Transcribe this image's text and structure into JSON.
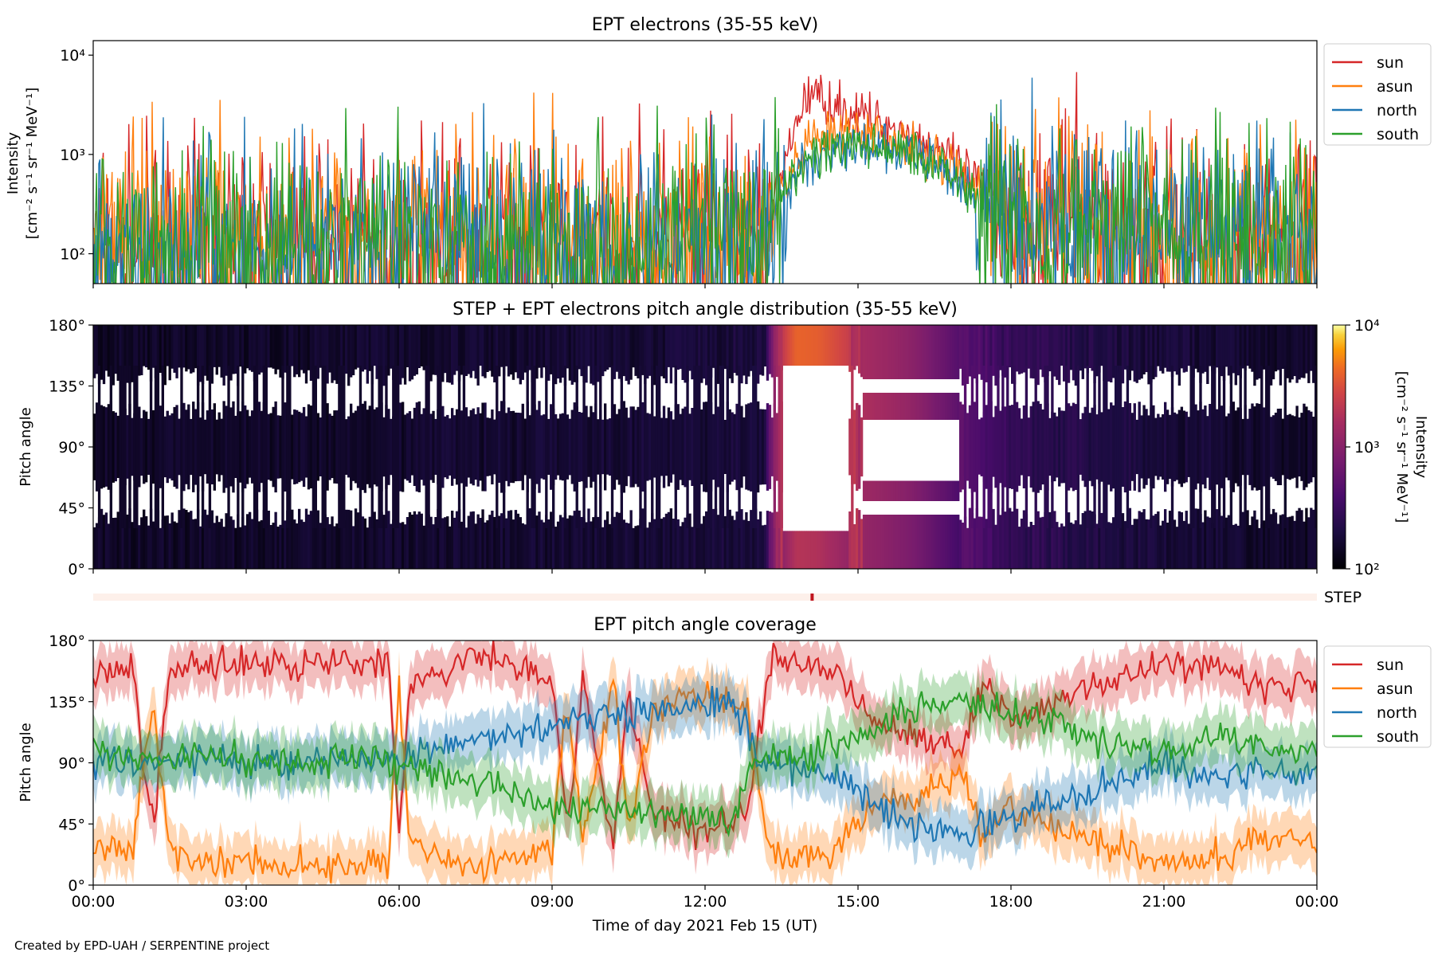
{
  "figure": {
    "credit": "Created by EPD-UAH / SERPENTINE project",
    "xlabel": "Time of day 2021 Feb 15 (UT)",
    "xtick_labels": [
      "00:00",
      "03:00",
      "06:00",
      "09:00",
      "12:00",
      "15:00",
      "18:00",
      "21:00",
      "00:00"
    ],
    "step_label": "STEP"
  },
  "chart_data": [
    {
      "type": "line",
      "title": "EPT electrons (35-55 keV)",
      "ylabel_lines": [
        "Intensity",
        "[cm⁻² s⁻¹ sr⁻¹ MeV⁻¹]"
      ],
      "yscale": "log",
      "ylim": [
        50,
        14000
      ],
      "yticks": [
        100,
        1000,
        10000
      ],
      "ytick_labels": [
        "10²",
        "10³",
        "10⁴"
      ],
      "xlim_hours": [
        0,
        24
      ],
      "legend_position": "outside-right-top",
      "series": [
        {
          "name": "sun",
          "color": "#d62728",
          "hours": [
            0,
            2,
            4,
            6,
            8,
            10,
            12,
            13.2,
            13.6,
            13.9,
            14.1,
            14.5,
            15,
            15.5,
            16,
            16.5,
            17,
            17.5,
            18,
            19,
            20,
            21,
            22,
            23,
            24
          ],
          "values": [
            120,
            120,
            125,
            125,
            130,
            135,
            140,
            150,
            700,
            3000,
            4200,
            3200,
            2500,
            2000,
            1600,
            1200,
            700,
            450,
            300,
            250,
            200,
            180,
            170,
            160,
            150
          ]
        },
        {
          "name": "asun",
          "color": "#ff7f0e",
          "hours": [
            0,
            2,
            4,
            6,
            8,
            10,
            12,
            13.2,
            13.6,
            13.9,
            14.1,
            14.5,
            15,
            15.5,
            16,
            16.5,
            17,
            17.5,
            18,
            19,
            20,
            21,
            22,
            23,
            24
          ],
          "values": [
            140,
            145,
            145,
            150,
            150,
            155,
            160,
            160,
            500,
            900,
            1300,
            1500,
            1600,
            1500,
            1300,
            1000,
            650,
            420,
            300,
            240,
            200,
            180,
            170,
            160,
            150
          ]
        },
        {
          "name": "north",
          "color": "#1f77b4",
          "hours": [
            0,
            2,
            4,
            6,
            8,
            10,
            12,
            13.2,
            13.6,
            13.9,
            14.1,
            14.5,
            15,
            15.5,
            16,
            16.5,
            17,
            17.5,
            18,
            19,
            20,
            21,
            22,
            23,
            24
          ],
          "values": [
            130,
            135,
            135,
            140,
            140,
            140,
            145,
            150,
            400,
            700,
            900,
            1100,
            1150,
            1100,
            1000,
            800,
            500,
            330,
            250,
            220,
            190,
            170,
            160,
            150,
            145
          ]
        },
        {
          "name": "south",
          "color": "#2ca02c",
          "hours": [
            0,
            2,
            4,
            6,
            8,
            10,
            12,
            13.2,
            13.6,
            13.9,
            14.1,
            14.5,
            15,
            15.5,
            16,
            16.5,
            17,
            17.5,
            18,
            19,
            20,
            21,
            22,
            23,
            24
          ],
          "values": [
            135,
            140,
            140,
            145,
            145,
            145,
            150,
            155,
            450,
            750,
            950,
            1150,
            1200,
            1150,
            1050,
            850,
            550,
            350,
            260,
            230,
            200,
            180,
            165,
            155,
            150
          ]
        }
      ]
    },
    {
      "type": "heatmap",
      "title": "STEP + EPT electrons pitch angle distribution (35-55 keV)",
      "ylabel": "Pitch angle",
      "yticks": [
        0,
        45,
        90,
        135,
        180
      ],
      "ytick_labels": [
        "0°",
        "45°",
        "90°",
        "135°",
        "180°"
      ],
      "ylim": [
        0,
        180
      ],
      "xlim_hours": [
        0,
        24
      ],
      "colorbar": {
        "label_lines": [
          "Intensity",
          "[cm⁻² s⁻¹ sr⁻¹ MeV⁻¹]"
        ],
        "scale": "log",
        "range": [
          100,
          10000
        ],
        "tick_labels": [
          "10²",
          "10³",
          "10⁴"
        ],
        "colormap": "inferno"
      },
      "intensity_profile": {
        "hours": [
          0,
          2,
          4,
          6,
          8,
          10,
          12,
          13.2,
          13.8,
          14.2,
          15,
          15.5,
          16,
          16.5,
          17,
          18,
          20,
          22,
          24
        ],
        "values": [
          150,
          150,
          155,
          160,
          165,
          170,
          180,
          200,
          3500,
          3300,
          1800,
          1500,
          1200,
          800,
          500,
          280,
          200,
          170,
          150
        ]
      }
    },
    {
      "type": "bar",
      "title": "",
      "label": "STEP",
      "xlim_hours": [
        0,
        24
      ],
      "marker_hours": [
        14.1
      ]
    },
    {
      "type": "line",
      "title": "EPT pitch angle coverage",
      "ylabel": "Pitch angle",
      "yticks": [
        0,
        45,
        90,
        135,
        180
      ],
      "ytick_labels": [
        "0°",
        "45°",
        "90°",
        "135°",
        "180°"
      ],
      "ylim": [
        0,
        180
      ],
      "xlim_hours": [
        0,
        24
      ],
      "legend_position": "outside-right-top",
      "series": [
        {
          "name": "sun",
          "color": "#d62728",
          "hours": [
            0,
            0.8,
            1.0,
            1.2,
            1.5,
            3,
            5.8,
            6.0,
            6.2,
            7.5,
            9.0,
            9.3,
            9.6,
            10.2,
            10.5,
            11,
            12,
            12.8,
            13.3,
            14.5,
            15.3,
            16,
            17,
            17.5,
            18,
            19,
            20,
            21,
            22,
            23,
            24
          ],
          "values": [
            155,
            160,
            80,
            50,
            160,
            165,
            165,
            30,
            150,
            170,
            150,
            40,
            150,
            30,
            140,
            50,
            40,
            50,
            165,
            160,
            120,
            115,
            100,
            150,
            120,
            140,
            150,
            165,
            160,
            145,
            150
          ]
        },
        {
          "name": "asun",
          "color": "#ff7f0e",
          "hours": [
            0,
            0.8,
            1.0,
            1.2,
            1.5,
            3,
            5.8,
            6.0,
            6.2,
            7.5,
            9.0,
            9.3,
            9.6,
            10.2,
            10.5,
            11,
            12,
            12.8,
            13.3,
            14.5,
            15.3,
            16,
            17,
            17.5,
            18,
            19,
            20,
            21,
            22,
            23,
            24
          ],
          "values": [
            30,
            25,
            100,
            130,
            20,
            15,
            15,
            150,
            30,
            10,
            30,
            140,
            30,
            150,
            40,
            130,
            140,
            130,
            20,
            25,
            60,
            65,
            80,
            30,
            60,
            40,
            30,
            15,
            20,
            35,
            30
          ]
        },
        {
          "name": "north",
          "color": "#1f77b4",
          "hours": [
            0,
            1,
            2,
            3,
            4,
            5,
            6,
            7,
            8,
            9,
            10,
            11,
            12,
            12.5,
            13,
            14,
            15,
            16,
            17,
            18,
            19,
            20,
            21,
            22,
            23,
            24
          ],
          "values": [
            90,
            90,
            95,
            90,
            90,
            90,
            95,
            105,
            110,
            120,
            125,
            130,
            135,
            140,
            95,
            85,
            70,
            45,
            40,
            50,
            60,
            75,
            90,
            80,
            85,
            80
          ]
        },
        {
          "name": "south",
          "color": "#2ca02c",
          "hours": [
            0,
            1,
            2,
            3,
            4,
            5,
            6,
            7,
            8,
            9,
            10,
            11,
            12,
            12.5,
            13,
            14,
            15,
            16,
            17,
            18,
            19,
            20,
            21,
            22,
            23,
            24
          ],
          "values": [
            100,
            90,
            95,
            90,
            90,
            95,
            90,
            80,
            70,
            60,
            55,
            55,
            50,
            45,
            95,
            95,
            110,
            130,
            135,
            125,
            120,
            105,
            95,
            110,
            100,
            100
          ]
        }
      ]
    }
  ]
}
